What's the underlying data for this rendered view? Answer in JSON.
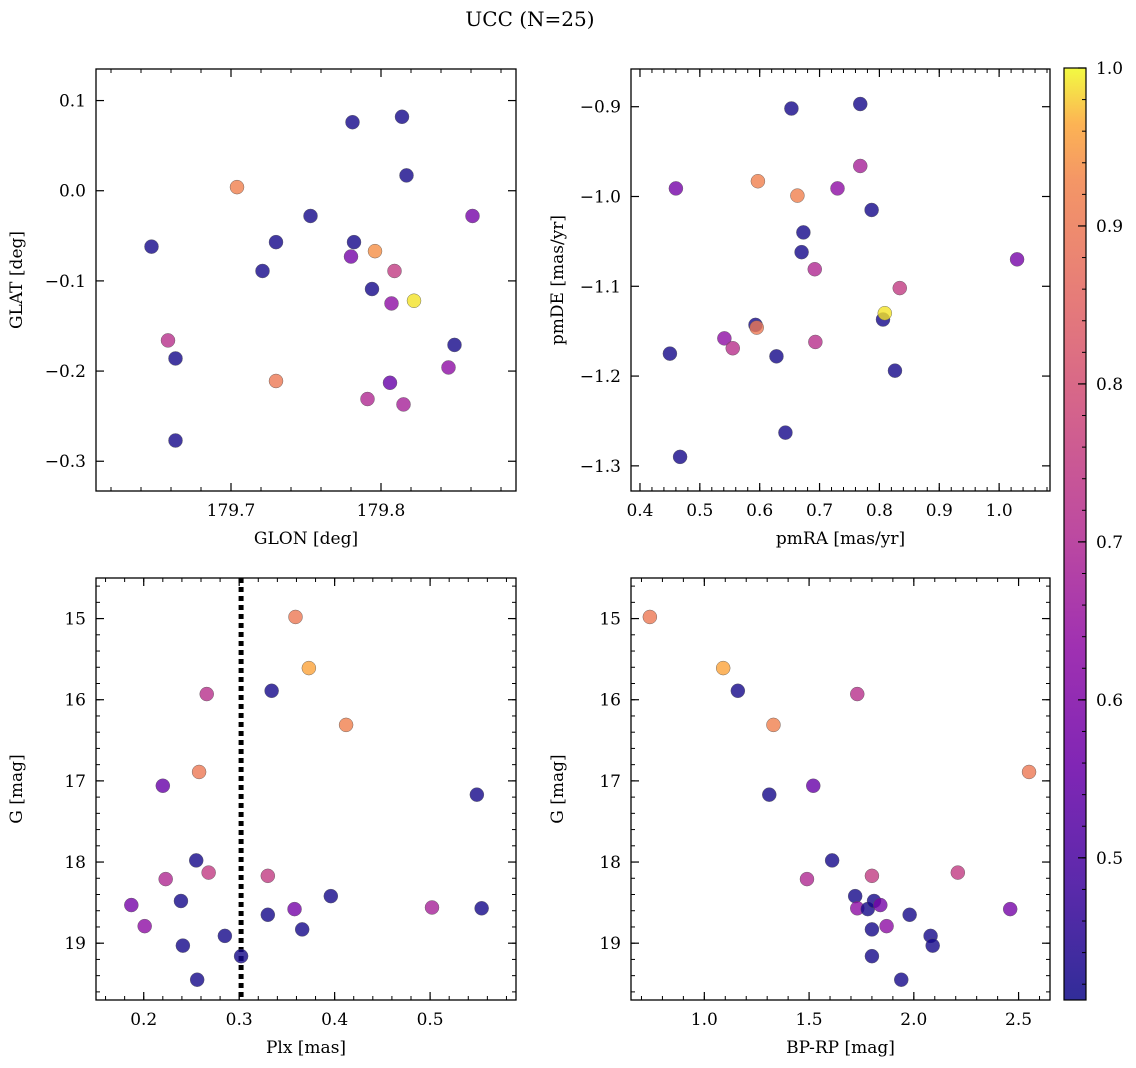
{
  "figure": {
    "title": "UCC (N=25)"
  },
  "colorbar": {
    "ticks": [
      0.5,
      0.6,
      0.7,
      0.8,
      0.9,
      1.0
    ],
    "tick_labels": [
      "0.5",
      "0.6",
      "0.7",
      "0.8",
      "0.9",
      "1.0"
    ],
    "range": [
      0.41,
      1.0
    ],
    "colormap": "plasma"
  },
  "chart_data": [
    {
      "type": "scatter",
      "title": "",
      "xlabel": "GLON [deg]",
      "ylabel": "GLAT [deg]",
      "xlim": [
        179.61,
        179.89
      ],
      "ylim": [
        -0.333,
        0.135
      ],
      "xticks": [
        179.7,
        179.8
      ],
      "xtick_labels": [
        "179.7",
        "179.8"
      ],
      "yticks": [
        0.1,
        0.0,
        -0.1,
        -0.2,
        -0.3
      ],
      "ytick_labels": [
        "0.1",
        "0.0",
        "−0.1",
        "−0.2",
        "−0.3"
      ],
      "vline": null,
      "points": [
        {
          "x": 179.647,
          "y": -0.062,
          "c": 0.42
        },
        {
          "x": 179.658,
          "y": -0.166,
          "c": 0.72
        },
        {
          "x": 179.663,
          "y": -0.186,
          "c": 0.42
        },
        {
          "x": 179.663,
          "y": -0.277,
          "c": 0.42
        },
        {
          "x": 179.704,
          "y": 0.004,
          "c": 0.92
        },
        {
          "x": 179.721,
          "y": -0.089,
          "c": 0.42
        },
        {
          "x": 179.73,
          "y": -0.057,
          "c": 0.42
        },
        {
          "x": 179.73,
          "y": -0.211,
          "c": 0.9
        },
        {
          "x": 179.753,
          "y": -0.028,
          "c": 0.42
        },
        {
          "x": 179.781,
          "y": 0.076,
          "c": 0.42
        },
        {
          "x": 179.782,
          "y": -0.057,
          "c": 0.42
        },
        {
          "x": 179.78,
          "y": -0.073,
          "c": 0.58
        },
        {
          "x": 179.791,
          "y": -0.231,
          "c": 0.7
        },
        {
          "x": 179.794,
          "y": -0.109,
          "c": 0.42
        },
        {
          "x": 179.796,
          "y": -0.067,
          "c": 0.94
        },
        {
          "x": 179.806,
          "y": -0.213,
          "c": 0.55
        },
        {
          "x": 179.807,
          "y": -0.125,
          "c": 0.63
        },
        {
          "x": 179.809,
          "y": -0.089,
          "c": 0.75
        },
        {
          "x": 179.814,
          "y": 0.082,
          "c": 0.42
        },
        {
          "x": 179.815,
          "y": -0.237,
          "c": 0.68
        },
        {
          "x": 179.817,
          "y": 0.017,
          "c": 0.42
        },
        {
          "x": 179.822,
          "y": -0.122,
          "c": 0.99
        },
        {
          "x": 179.845,
          "y": -0.196,
          "c": 0.63
        },
        {
          "x": 179.849,
          "y": -0.171,
          "c": 0.42
        },
        {
          "x": 179.861,
          "y": -0.028,
          "c": 0.58
        }
      ]
    },
    {
      "type": "scatter",
      "title": "",
      "xlabel": "pmRA [mas/yr]",
      "ylabel": "pmDE [mas/yr]",
      "xlim": [
        0.385,
        1.085
      ],
      "ylim": [
        -1.328,
        -0.858
      ],
      "xticks": [
        0.4,
        0.5,
        0.6,
        0.7,
        0.8,
        0.9,
        1.0
      ],
      "xtick_labels": [
        "0.4",
        "0.5",
        "0.6",
        "0.7",
        "0.8",
        "0.9",
        "1.0"
      ],
      "yticks": [
        -0.9,
        -1.0,
        -1.1,
        -1.2,
        -1.3
      ],
      "ytick_labels": [
        "−0.9",
        "−1.0",
        "−1.1",
        "−1.2",
        "−1.3"
      ],
      "vline": null,
      "points": [
        {
          "x": 0.45,
          "y": -1.175,
          "c": 0.42
        },
        {
          "x": 0.46,
          "y": -0.991,
          "c": 0.58
        },
        {
          "x": 0.467,
          "y": -1.29,
          "c": 0.42
        },
        {
          "x": 0.541,
          "y": -1.158,
          "c": 0.63
        },
        {
          "x": 0.555,
          "y": -1.169,
          "c": 0.72
        },
        {
          "x": 0.593,
          "y": -1.143,
          "c": 0.42
        },
        {
          "x": 0.595,
          "y": -1.146,
          "c": 0.9
        },
        {
          "x": 0.597,
          "y": -0.983,
          "c": 0.92
        },
        {
          "x": 0.628,
          "y": -1.178,
          "c": 0.42
        },
        {
          "x": 0.643,
          "y": -1.263,
          "c": 0.42
        },
        {
          "x": 0.653,
          "y": -0.902,
          "c": 0.42
        },
        {
          "x": 0.663,
          "y": -0.999,
          "c": 0.92
        },
        {
          "x": 0.67,
          "y": -1.062,
          "c": 0.42
        },
        {
          "x": 0.673,
          "y": -1.04,
          "c": 0.42
        },
        {
          "x": 0.692,
          "y": -1.081,
          "c": 0.7
        },
        {
          "x": 0.693,
          "y": -1.162,
          "c": 0.72
        },
        {
          "x": 0.73,
          "y": -0.991,
          "c": 0.63
        },
        {
          "x": 0.768,
          "y": -0.966,
          "c": 0.68
        },
        {
          "x": 0.768,
          "y": -0.897,
          "c": 0.42
        },
        {
          "x": 0.787,
          "y": -1.015,
          "c": 0.42
        },
        {
          "x": 0.806,
          "y": -1.137,
          "c": 0.42
        },
        {
          "x": 0.809,
          "y": -1.13,
          "c": 0.99
        },
        {
          "x": 0.826,
          "y": -1.194,
          "c": 0.42
        },
        {
          "x": 0.834,
          "y": -1.102,
          "c": 0.75
        },
        {
          "x": 1.03,
          "y": -1.07,
          "c": 0.58
        }
      ]
    },
    {
      "type": "scatter",
      "title": "",
      "xlabel": "Plx [mas]",
      "ylabel": "G [mag]",
      "xlim": [
        0.15,
        0.59
      ],
      "ylim": [
        19.7,
        14.5
      ],
      "xticks": [
        0.2,
        0.3,
        0.4,
        0.5
      ],
      "xtick_labels": [
        "0.2",
        "0.3",
        "0.4",
        "0.5"
      ],
      "yticks": [
        15,
        16,
        17,
        18,
        19
      ],
      "ytick_labels": [
        "15",
        "16",
        "17",
        "18",
        "19"
      ],
      "vline": 0.302,
      "points": [
        {
          "x": 0.187,
          "y": 18.53,
          "c": 0.58
        },
        {
          "x": 0.201,
          "y": 18.79,
          "c": 0.63
        },
        {
          "x": 0.22,
          "y": 17.06,
          "c": 0.55
        },
        {
          "x": 0.223,
          "y": 18.21,
          "c": 0.7
        },
        {
          "x": 0.239,
          "y": 18.48,
          "c": 0.42
        },
        {
          "x": 0.241,
          "y": 19.03,
          "c": 0.42
        },
        {
          "x": 0.255,
          "y": 17.98,
          "c": 0.42
        },
        {
          "x": 0.256,
          "y": 19.45,
          "c": 0.42
        },
        {
          "x": 0.258,
          "y": 16.89,
          "c": 0.9
        },
        {
          "x": 0.266,
          "y": 15.93,
          "c": 0.72
        },
        {
          "x": 0.268,
          "y": 18.13,
          "c": 0.75
        },
        {
          "x": 0.285,
          "y": 18.91,
          "c": 0.42
        },
        {
          "x": 0.302,
          "y": 19.16,
          "c": 0.42
        },
        {
          "x": 0.33,
          "y": 18.17,
          "c": 0.75
        },
        {
          "x": 0.33,
          "y": 18.65,
          "c": 0.42
        },
        {
          "x": 0.334,
          "y": 15.89,
          "c": 0.42
        },
        {
          "x": 0.358,
          "y": 18.58,
          "c": 0.58
        },
        {
          "x": 0.359,
          "y": 14.98,
          "c": 0.9
        },
        {
          "x": 0.366,
          "y": 18.83,
          "c": 0.42
        },
        {
          "x": 0.373,
          "y": 15.61,
          "c": 0.96
        },
        {
          "x": 0.396,
          "y": 18.42,
          "c": 0.42
        },
        {
          "x": 0.412,
          "y": 16.31,
          "c": 0.92
        },
        {
          "x": 0.502,
          "y": 18.56,
          "c": 0.68
        },
        {
          "x": 0.549,
          "y": 17.17,
          "c": 0.42
        },
        {
          "x": 0.554,
          "y": 18.57,
          "c": 0.42
        }
      ]
    },
    {
      "type": "scatter",
      "title": "",
      "xlabel": "BP-RP [mag]",
      "ylabel": "G [mag]",
      "xlim": [
        0.65,
        2.65
      ],
      "ylim": [
        19.7,
        14.5
      ],
      "xticks": [
        1.0,
        1.5,
        2.0,
        2.5
      ],
      "xtick_labels": [
        "1.0",
        "1.5",
        "2.0",
        "2.5"
      ],
      "yticks": [
        15,
        16,
        17,
        18,
        19
      ],
      "ytick_labels": [
        "15",
        "16",
        "17",
        "18",
        "19"
      ],
      "vline": null,
      "points": [
        {
          "x": 0.74,
          "y": 14.98,
          "c": 0.9
        },
        {
          "x": 1.09,
          "y": 15.61,
          "c": 0.96
        },
        {
          "x": 1.16,
          "y": 15.89,
          "c": 0.42
        },
        {
          "x": 1.33,
          "y": 16.31,
          "c": 0.92
        },
        {
          "x": 1.31,
          "y": 17.17,
          "c": 0.42
        },
        {
          "x": 1.52,
          "y": 17.06,
          "c": 0.55
        },
        {
          "x": 1.49,
          "y": 18.21,
          "c": 0.7
        },
        {
          "x": 1.61,
          "y": 17.98,
          "c": 0.42
        },
        {
          "x": 1.73,
          "y": 15.93,
          "c": 0.72
        },
        {
          "x": 1.72,
          "y": 18.42,
          "c": 0.42
        },
        {
          "x": 1.73,
          "y": 18.57,
          "c": 0.63
        },
        {
          "x": 1.78,
          "y": 18.58,
          "c": 0.42
        },
        {
          "x": 1.8,
          "y": 18.17,
          "c": 0.75
        },
        {
          "x": 1.8,
          "y": 18.83,
          "c": 0.42
        },
        {
          "x": 1.81,
          "y": 18.48,
          "c": 0.42
        },
        {
          "x": 1.8,
          "y": 19.16,
          "c": 0.42
        },
        {
          "x": 1.84,
          "y": 18.53,
          "c": 0.58
        },
        {
          "x": 1.87,
          "y": 18.79,
          "c": 0.63
        },
        {
          "x": 1.94,
          "y": 19.45,
          "c": 0.42
        },
        {
          "x": 1.98,
          "y": 18.65,
          "c": 0.42
        },
        {
          "x": 2.08,
          "y": 18.91,
          "c": 0.42
        },
        {
          "x": 2.09,
          "y": 19.03,
          "c": 0.42
        },
        {
          "x": 2.21,
          "y": 18.13,
          "c": 0.75
        },
        {
          "x": 2.46,
          "y": 18.58,
          "c": 0.58
        },
        {
          "x": 2.55,
          "y": 16.89,
          "c": 0.9
        }
      ]
    }
  ]
}
